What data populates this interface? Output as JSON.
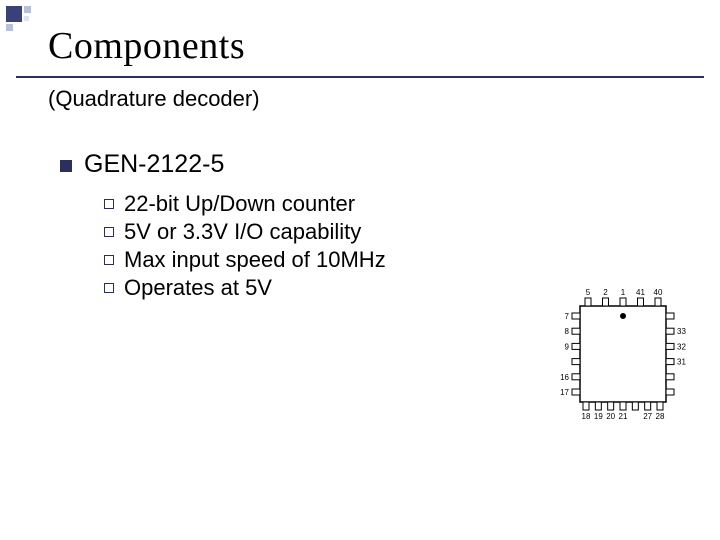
{
  "title": "Components",
  "subtitle": "(Quadrature decoder)",
  "heading": "GEN-2122-5",
  "bullets": [
    "22-bit Up/Down counter",
    "5V or 3.3V I/O capability",
    "Max input speed of 10MHz",
    "Operates at 5V"
  ],
  "chip": {
    "top_pins": [
      "5",
      "2",
      "1",
      "41",
      "40"
    ],
    "left_pins": [
      "7",
      "8",
      "9",
      "",
      "16",
      "17"
    ],
    "right_pins": [
      "",
      "33",
      "32",
      "31",
      "",
      ""
    ],
    "bottom_pins": [
      "18",
      "19",
      "20",
      "21",
      "",
      "27",
      "28"
    ],
    "stroke": "#000000",
    "fill": "#ffffff"
  },
  "colors": {
    "accent": "#2a2f5c",
    "deco_mid": "#b9c0da",
    "deco_light": "#dfe3ef"
  }
}
